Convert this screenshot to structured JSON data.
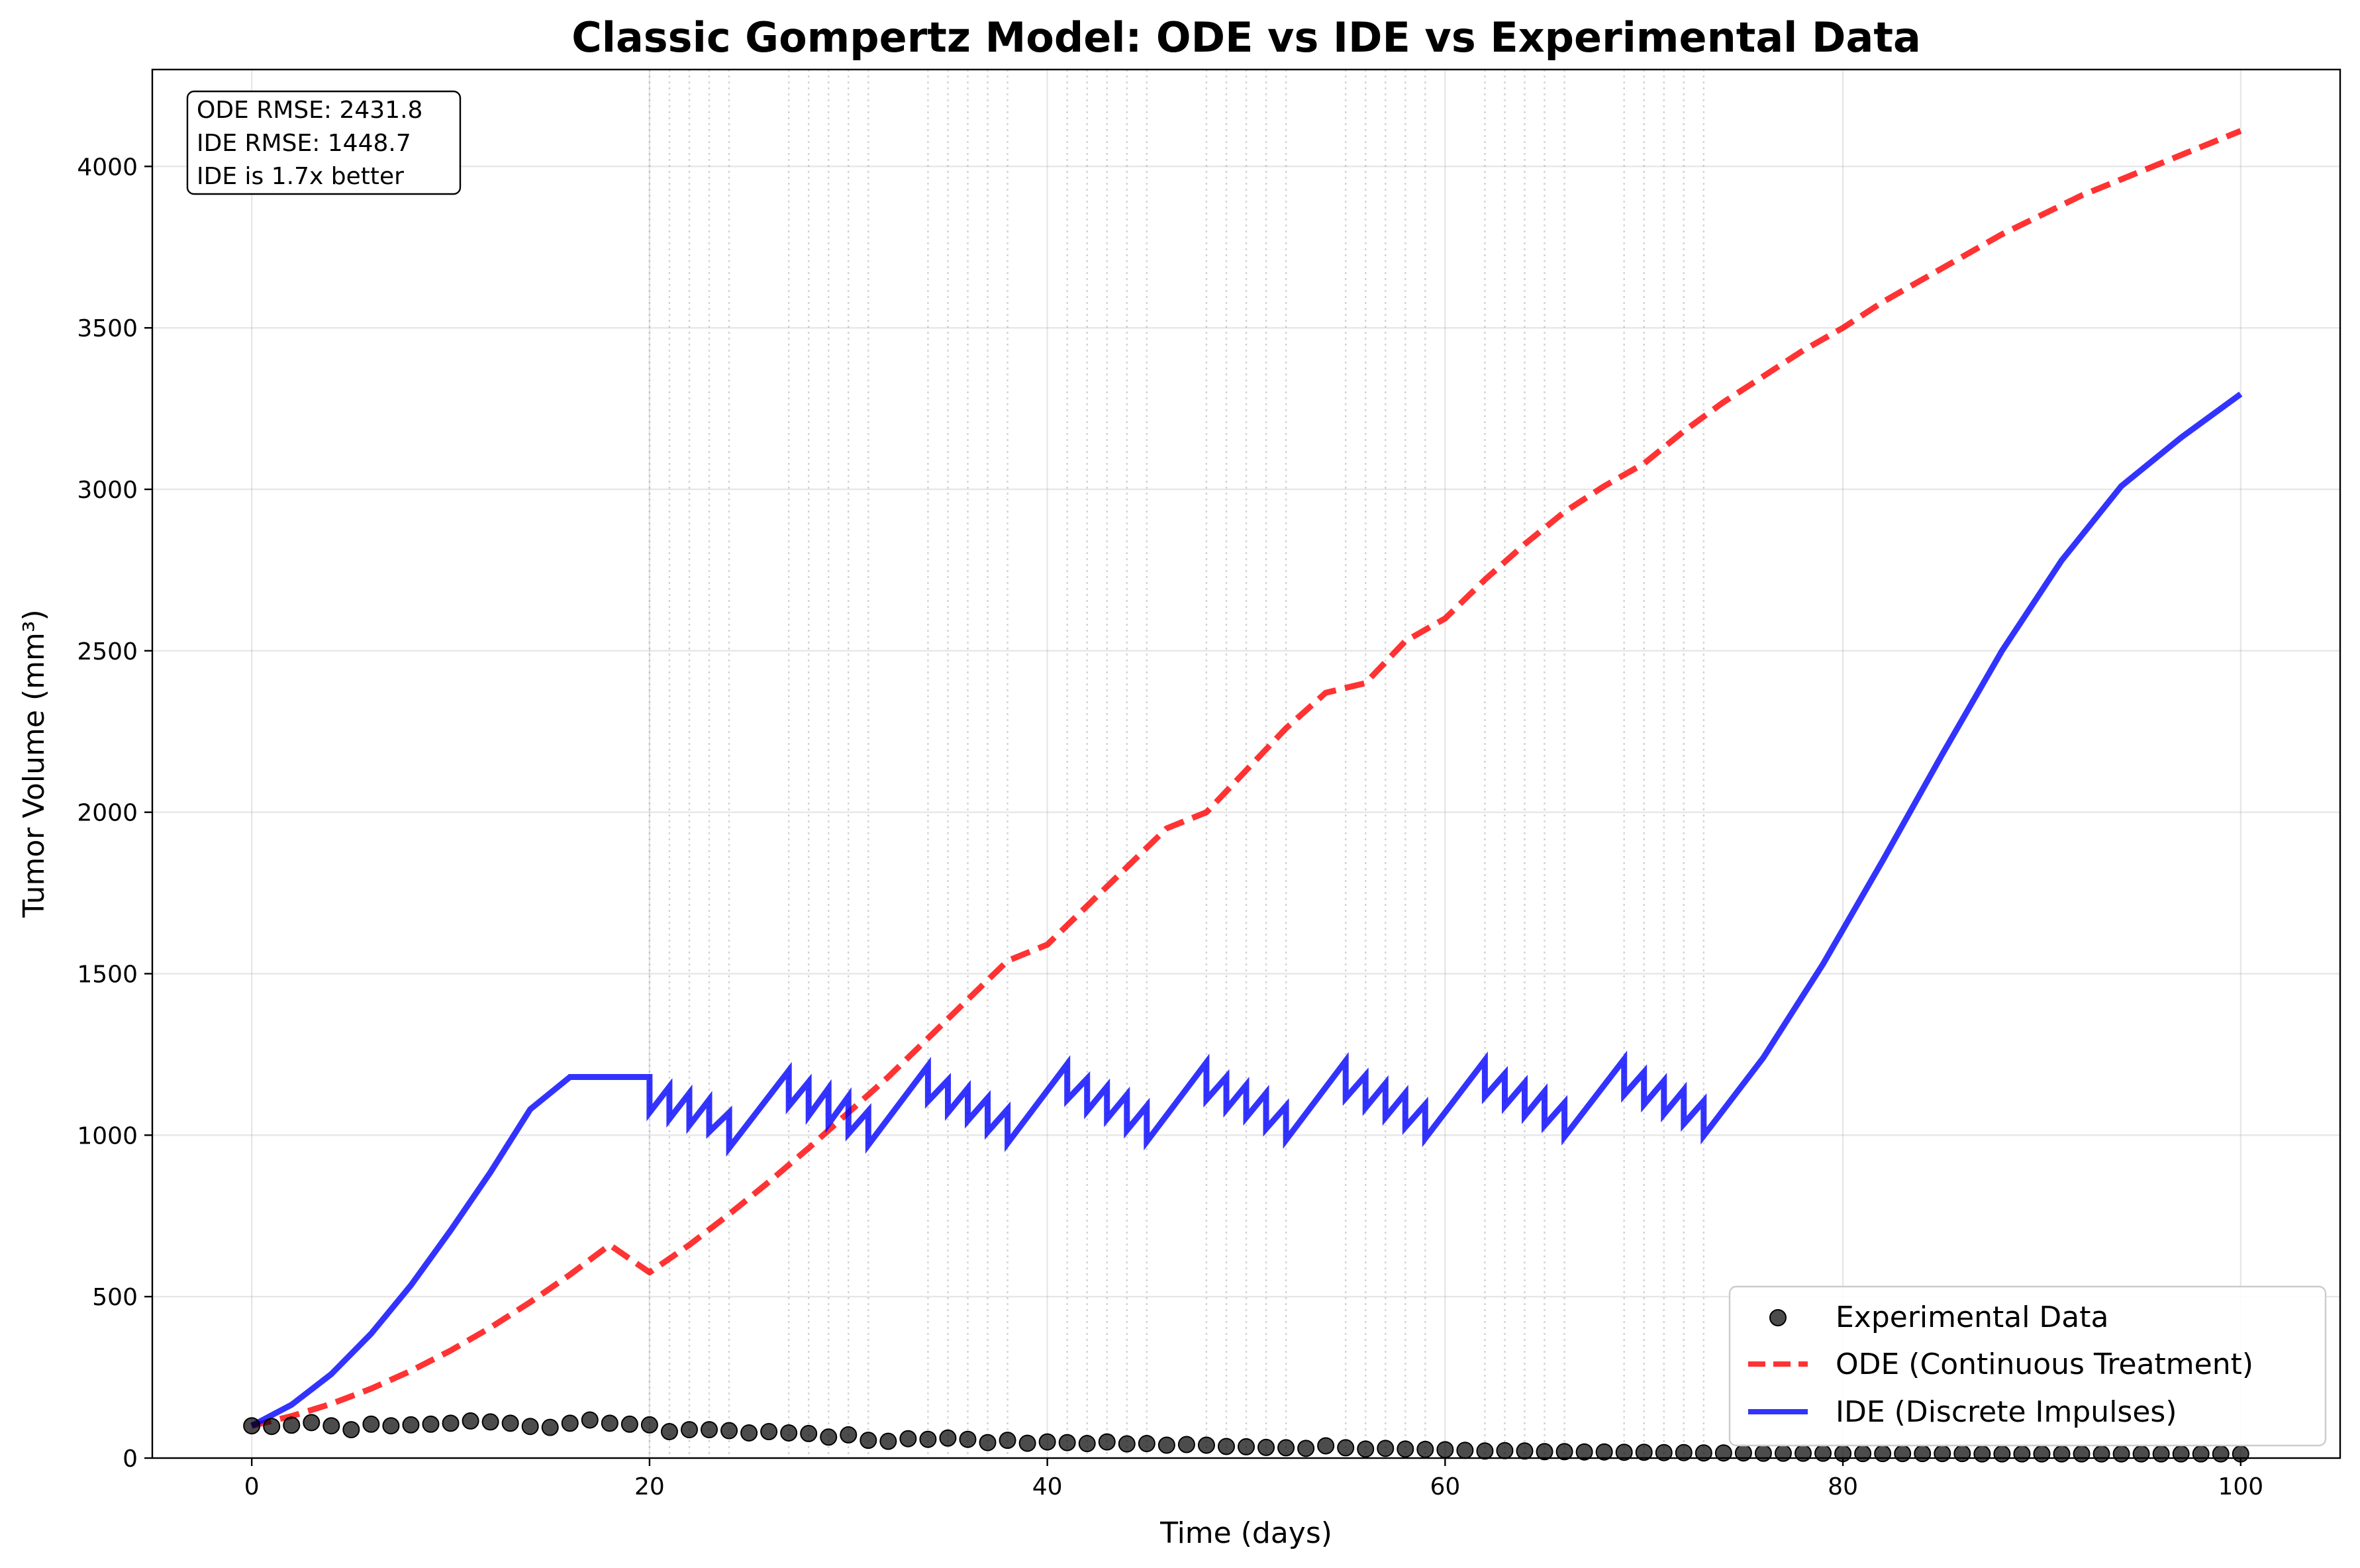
{
  "chart_data": {
    "type": "line",
    "title": "Classic Gompertz Model: ODE vs IDE vs Experimental Data",
    "xlabel": "Time (days)",
    "ylabel": "Tumor Volume (mm³)",
    "xlim": [
      -5,
      105
    ],
    "ylim": [
      0,
      4300
    ],
    "xticks": [
      0,
      20,
      40,
      60,
      80,
      100
    ],
    "yticks": [
      0,
      500,
      1000,
      1500,
      2000,
      2500,
      3000,
      3500,
      4000
    ],
    "grid": true,
    "legend_position": "lower-right",
    "treatment_days": [
      20,
      21,
      22,
      23,
      24,
      27,
      28,
      29,
      30,
      31,
      34,
      35,
      36,
      37,
      38,
      41,
      42,
      43,
      44,
      45,
      48,
      49,
      50,
      51,
      52,
      55,
      56,
      57,
      58,
      59,
      62,
      63,
      64,
      65,
      66,
      69,
      70,
      71,
      72,
      73
    ],
    "series": [
      {
        "name": "Experimental Data",
        "kind": "scatter",
        "color": "#000000",
        "x": [
          0,
          1,
          2,
          3,
          4,
          5,
          6,
          7,
          8,
          9,
          10,
          11,
          12,
          13,
          14,
          15,
          16,
          17,
          18,
          19,
          20,
          21,
          22,
          23,
          24,
          25,
          26,
          27,
          28,
          29,
          30,
          31,
          32,
          33,
          34,
          35,
          36,
          37,
          38,
          39,
          40,
          41,
          42,
          43,
          44,
          45,
          46,
          47,
          48,
          49,
          50,
          51,
          52,
          53,
          54,
          55,
          56,
          57,
          58,
          59,
          60,
          61,
          62,
          63,
          64,
          65,
          66,
          67,
          68,
          69,
          70,
          71,
          72,
          73,
          74,
          75,
          76,
          77,
          78,
          79,
          80,
          81,
          82,
          83,
          84,
          85,
          86,
          87,
          88,
          89,
          90,
          91,
          92,
          93,
          94,
          95,
          96,
          97,
          98,
          99,
          100
        ],
        "y": [
          100,
          98,
          102,
          110,
          100,
          88,
          105,
          100,
          103,
          105,
          108,
          115,
          112,
          108,
          98,
          95,
          108,
          118,
          108,
          105,
          103,
          82,
          88,
          88,
          85,
          78,
          82,
          78,
          76,
          65,
          72,
          55,
          52,
          60,
          58,
          62,
          58,
          48,
          55,
          46,
          50,
          48,
          45,
          50,
          44,
          45,
          40,
          42,
          40,
          36,
          35,
          33,
          32,
          30,
          38,
          32,
          28,
          30,
          28,
          27,
          26,
          24,
          22,
          23,
          22,
          20,
          20,
          19,
          19,
          18,
          18,
          17,
          17,
          16,
          16,
          16,
          15,
          15,
          15,
          15,
          14,
          14,
          14,
          14,
          14,
          14,
          14,
          13,
          13,
          13,
          13,
          13,
          13,
          13,
          13,
          13,
          13,
          13,
          13,
          13,
          13
        ]
      },
      {
        "name": "ODE (Continuous Treatment)",
        "kind": "line",
        "style": "dashed",
        "color": "#ff0000",
        "x": [
          0,
          2,
          4,
          6,
          8,
          10,
          12,
          14,
          16,
          18,
          20,
          22,
          24,
          26,
          28,
          30,
          32,
          34,
          36,
          38,
          40,
          42,
          44,
          46,
          48,
          50,
          52,
          54,
          56,
          58,
          60,
          62,
          64,
          66,
          68,
          70,
          72,
          74,
          76,
          78,
          80,
          82,
          84,
          86,
          88,
          90,
          92,
          94,
          96,
          98,
          100
        ],
        "y": [
          100,
          130,
          168,
          215,
          270,
          333,
          404,
          483,
          568,
          660,
          575,
          660,
          755,
          855,
          960,
          1070,
          1180,
          1300,
          1420,
          1540,
          1590,
          1710,
          1830,
          1950,
          2000,
          2130,
          2260,
          2370,
          2400,
          2530,
          2600,
          2720,
          2830,
          2930,
          3010,
          3080,
          3180,
          3270,
          3350,
          3430,
          3500,
          3580,
          3650,
          3720,
          3790,
          3850,
          3910,
          3960,
          4010,
          4060,
          4110
        ]
      },
      {
        "name": "IDE (Discrete Impulses)",
        "kind": "line",
        "style": "solid",
        "color": "#0000ff",
        "x": [
          0,
          2,
          4,
          6,
          8,
          10,
          12,
          14,
          16,
          18,
          20,
          20,
          21,
          21,
          22,
          22,
          23,
          23,
          24,
          24,
          27,
          27,
          28,
          28,
          29,
          29,
          30,
          30,
          31,
          31,
          34,
          34,
          35,
          35,
          36,
          36,
          37,
          37,
          38,
          38,
          41,
          41,
          42,
          42,
          43,
          43,
          44,
          44,
          45,
          45,
          48,
          48,
          49,
          49,
          50,
          50,
          51,
          51,
          52,
          52,
          55,
          55,
          56,
          56,
          57,
          57,
          58,
          58,
          59,
          59,
          62,
          62,
          63,
          63,
          64,
          64,
          65,
          65,
          66,
          66,
          69,
          69,
          70,
          70,
          71,
          71,
          72,
          72,
          73,
          73,
          76,
          79,
          82,
          85,
          88,
          91,
          94,
          97,
          100
        ],
        "y": [
          100,
          165,
          260,
          385,
          535,
          705,
          885,
          1080,
          1180,
          1180,
          1180,
          1070,
          1150,
          1050,
          1130,
          1030,
          1110,
          1010,
          1070,
          960,
          1200,
          1090,
          1165,
          1060,
          1145,
          1035,
          1120,
          1005,
          1075,
          970,
          1215,
          1105,
          1170,
          1070,
          1145,
          1045,
          1115,
          1010,
          1080,
          975,
          1220,
          1110,
          1175,
          1075,
          1150,
          1050,
          1125,
          1015,
          1090,
          980,
          1225,
          1110,
          1180,
          1080,
          1155,
          1055,
          1130,
          1020,
          1090,
          985,
          1230,
          1115,
          1185,
          1085,
          1160,
          1055,
          1130,
          1025,
          1095,
          990,
          1232,
          1120,
          1190,
          1090,
          1162,
          1060,
          1135,
          1030,
          1100,
          995,
          1235,
          1125,
          1195,
          1095,
          1168,
          1065,
          1140,
          1035,
          1105,
          998,
          1240,
          1530,
          1850,
          2180,
          2500,
          2780,
          3010,
          3160,
          3295
        ]
      }
    ],
    "annotation": [
      "ODE RMSE: 2431.8",
      "IDE RMSE: 1448.7",
      "IDE is 1.7x better"
    ]
  }
}
